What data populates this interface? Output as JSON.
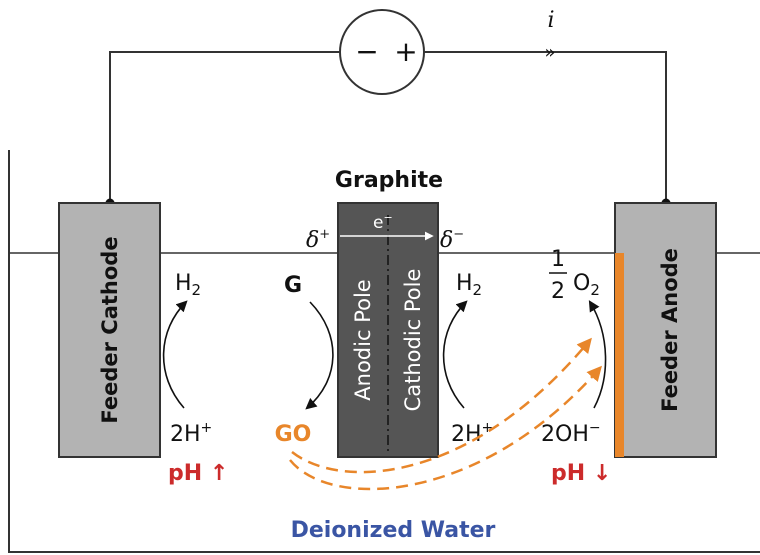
{
  "colors": {
    "electrode_fill": "#b3b3b3",
    "graphite_fill": "#555555",
    "orange": "#e8862a",
    "red": "#cc2b2b",
    "blue": "#3a55a4",
    "line": "#333333"
  },
  "power_source": {
    "minus": "−",
    "plus": "+"
  },
  "current": {
    "symbol": "i",
    "marker": "»"
  },
  "graphite": {
    "title": "Graphite",
    "electron": "e",
    "electron_sup": "−",
    "anodic_pole": "Anodic Pole",
    "cathodic_pole": "Cathodic Pole",
    "delta_plus": "δ",
    "delta_plus_sup": "+",
    "delta_minus": "δ",
    "delta_minus_sup": "−"
  },
  "feeder_cathode": {
    "label": "Feeder Cathode",
    "product": "H",
    "product_sub": "2",
    "reactant": "2H",
    "reactant_sup": "+",
    "ph_label": "pH ↑"
  },
  "middle_left": {
    "product": "G",
    "reactant": "GO"
  },
  "middle_right": {
    "product": "H",
    "product_sub": "2",
    "reactant": "2H",
    "reactant_sup": "+"
  },
  "feeder_anode": {
    "label": "Feeder Anode",
    "frac_num": "1",
    "frac_den": "2",
    "product": "O",
    "product_sub": "2",
    "reactant": "2OH",
    "reactant_sup": "−",
    "ph_label": "pH ↓"
  },
  "medium": {
    "label": "Deionized Water"
  }
}
